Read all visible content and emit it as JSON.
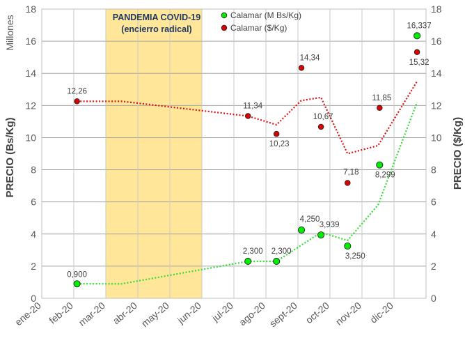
{
  "chart_data": {
    "type": "scatter",
    "x": [
      "ene-20",
      "feb-20",
      "mar-20",
      "abr-20",
      "may-20",
      "jun-20",
      "jul-20",
      "ago-20",
      "sept-20",
      "oct-20",
      "nov-20",
      "dic-20"
    ],
    "y_left": {
      "label": "PRECIO (Bs/Kg)",
      "unit_label": "Millones",
      "ylim": [
        0,
        18
      ],
      "ticks": [
        "0",
        "2",
        "4",
        "6",
        "8",
        "10",
        "12",
        "14",
        "16",
        "18"
      ]
    },
    "y_right": {
      "label": "PRECIO ($/Kg)",
      "ylim": [
        0,
        18
      ],
      "ticks": [
        "0",
        "2",
        "4",
        "6",
        "8",
        "10",
        "12",
        "14",
        "16",
        "18"
      ]
    },
    "grid": true,
    "shaded_period": {
      "from": "mar-20",
      "to": "jun-20",
      "color": "#FFE699",
      "text": [
        "PANDEMIA COVID-19",
        "(encierro radical)"
      ]
    },
    "series": [
      {
        "name": "Calamar (M Bs/Kg)",
        "axis": "left",
        "color": "#00EE00",
        "trend_color": "#33DD33",
        "points": [
          {
            "x": "feb-20",
            "y": 0.9,
            "label": "0,900"
          },
          {
            "x": "jul-20",
            "y": 2.3,
            "label": "2,300"
          },
          {
            "x": "ago-20",
            "y": 2.3,
            "label": "2,300"
          },
          {
            "x": "sept-20",
            "y": 4.25,
            "label": "4,250"
          },
          {
            "x": "sept-20",
            "y": 3.939,
            "label": "3,939"
          },
          {
            "x": "oct-20",
            "y": 3.25,
            "label": "3,250"
          },
          {
            "x": "nov-20",
            "y": 8.299,
            "label": "8,299"
          },
          {
            "x": "dic-20",
            "y": 16.337,
            "label": "16,337"
          }
        ],
        "trend": [
          {
            "x": "feb-20",
            "y": 0.9
          },
          {
            "x": "mar-20",
            "y": 0.9
          },
          {
            "x": "jul-20",
            "y": 2.3
          },
          {
            "x": "ago-20",
            "y": 2.3
          },
          {
            "x": "sept-20",
            "y": 4.1
          },
          {
            "x": "oct-20",
            "y": 3.6
          },
          {
            "x": "nov-20",
            "y": 5.8
          },
          {
            "x": "dic-20",
            "y": 12.2
          }
        ]
      },
      {
        "name": "Calamar ($/Kg)",
        "axis": "right",
        "color": "#DD0000",
        "trend_color": "#DD1111",
        "points": [
          {
            "x": "feb-20",
            "y": 12.26,
            "label": "12,26"
          },
          {
            "x": "jul-20",
            "y": 11.34,
            "label": "11,34"
          },
          {
            "x": "ago-20",
            "y": 10.23,
            "label": "10,23"
          },
          {
            "x": "sept-20",
            "y": 14.34,
            "label": "14,34"
          },
          {
            "x": "sept-20",
            "y": 10.67,
            "label": "10,67"
          },
          {
            "x": "oct-20",
            "y": 7.18,
            "label": "7,18"
          },
          {
            "x": "nov-20",
            "y": 11.85,
            "label": "11,85"
          },
          {
            "x": "dic-20",
            "y": 15.32,
            "label": "15,32"
          }
        ],
        "trend": [
          {
            "x": "feb-20",
            "y": 12.26
          },
          {
            "x": "mar-20",
            "y": 12.26
          },
          {
            "x": "jul-20",
            "y": 11.34
          },
          {
            "x": "ago-20",
            "y": 10.8
          },
          {
            "x": "sept-20",
            "y": 12.3
          },
          {
            "x": "sept-20",
            "y": 12.5
          },
          {
            "x": "oct-20",
            "y": 9.0
          },
          {
            "x": "nov-20",
            "y": 9.5
          },
          {
            "x": "dic-20",
            "y": 13.5
          }
        ]
      }
    ]
  }
}
